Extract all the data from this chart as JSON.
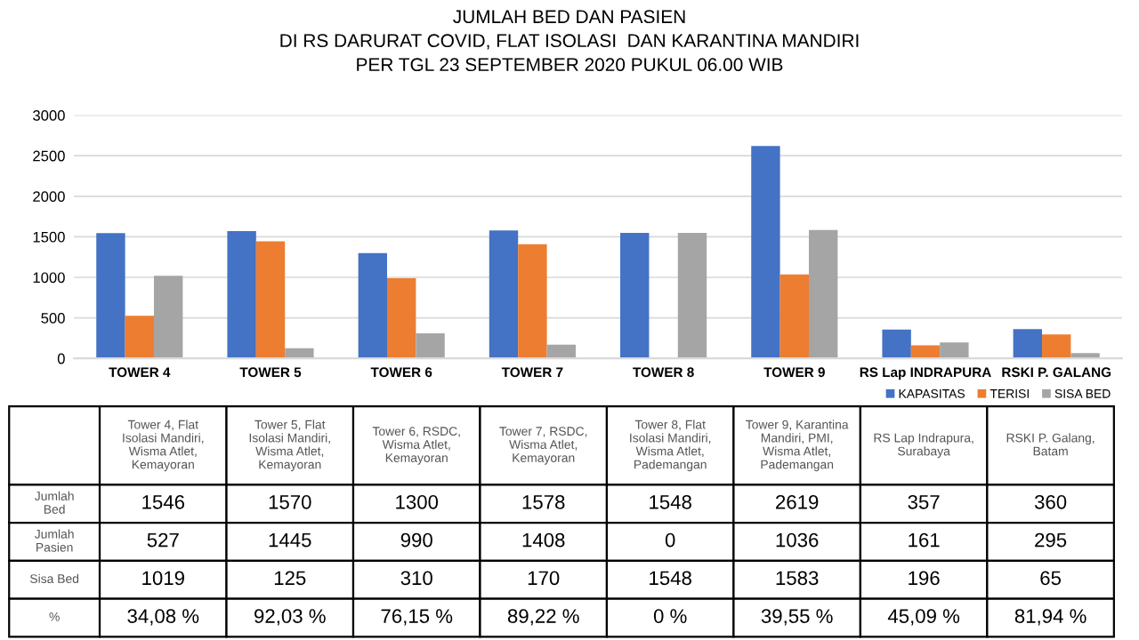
{
  "chart_data": {
    "type": "bar",
    "title": "JUMLAH BED DAN PASIEN\nDI RS DARURAT COVID, FLAT ISOLASI  DAN KARANTINA MANDIRI\nPER TGL 23 SEPTEMBER 2020 PUKUL 06.00 WIB",
    "categories": [
      "TOWER 4",
      "TOWER 5",
      "TOWER 6",
      "TOWER 7",
      "TOWER 8",
      "TOWER 9",
      "RS Lap INDRAPURA",
      "RSKI P. GALANG"
    ],
    "series": [
      {
        "name": "KAPASITAS",
        "color": "#4472c4",
        "values": [
          1546,
          1570,
          1300,
          1578,
          1548,
          2619,
          357,
          360
        ]
      },
      {
        "name": "TERISI",
        "color": "#ed7d31",
        "values": [
          527,
          1445,
          990,
          1408,
          0,
          1036,
          161,
          295
        ]
      },
      {
        "name": "SISA BED",
        "color": "#a5a5a5",
        "values": [
          1019,
          125,
          310,
          170,
          1548,
          1583,
          196,
          65
        ]
      }
    ],
    "ylim": [
      0,
      3000
    ],
    "yticks": [
      0,
      500,
      1000,
      1500,
      2000,
      2500,
      3000
    ],
    "grid": "y",
    "legend": "bottom right",
    "data_labels": true,
    "annotations": [
      "Jumlah\nBed",
      "Jumlah\nPasien",
      "Sisa Bed",
      "%",
      "Tower 4, Flat\nIsolasi Mandiri,\nWisma Atlet,\nKemayoran",
      "Tower 5, Flat\nIsolasi Mandiri,\nWisma Atlet,\nKemayoran",
      "Tower 6, RSDC,\nWisma Atlet,\nKemayoran",
      "Tower 7, RSDC,\nWisma Atlet,\nKemayoran",
      "Tower 8, Flat\nIsolasi Mandiri,\nWisma Atlet,\nPademangan",
      "Tower 9, Karantina\nMandiri, PMI,\nWisma Atlet,\nPademangan",
      "RS Lap Indrapura,\nSurabaya",
      "RSKI P. Galang,\nBatam",
      "34,08 %",
      "92,03 %",
      "76,15 %",
      "89,22 %",
      "0 %",
      "39,55 %",
      "45,09 %",
      "81,94 %"
    ]
  }
}
